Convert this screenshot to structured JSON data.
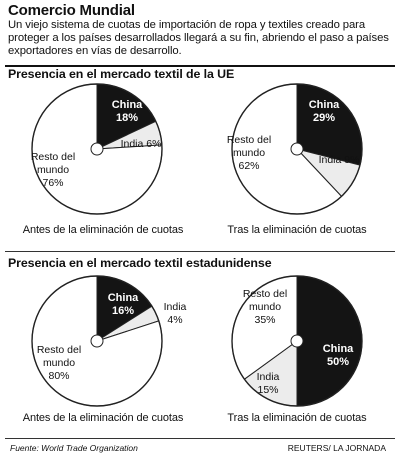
{
  "header": {
    "title": "Comercio Mundial",
    "intro": "Un viejo sistema de cuotas de importación de ropa y textiles creado para proteger a los países desarrollados llegará a su fin, abriendo el paso a países exportadores en vías de desarrollo."
  },
  "sections": [
    {
      "title": "Presencia en el mercado textil de la UE"
    },
    {
      "title": "Presencia en el mercado textil estadunidense"
    }
  ],
  "footer": {
    "source": "Fuente: World Trade Organization",
    "credit": "REUTERS/ LA JORNADA"
  },
  "colors": {
    "china": "#141414",
    "india": "#ececec",
    "rest": "#ffffff",
    "outline": "#222222"
  },
  "chart_data": [
    {
      "type": "pie",
      "title": "",
      "caption": "Antes de la eliminación de cuotas",
      "slices": [
        {
          "label": "China",
          "value": 18
        },
        {
          "label": "India",
          "value": 6
        },
        {
          "label": "Resto del mundo",
          "value": 76
        }
      ]
    },
    {
      "type": "pie",
      "title": "",
      "caption": "Tras la eliminación de cuotas",
      "slices": [
        {
          "label": "China",
          "value": 29
        },
        {
          "label": "India",
          "value": 9
        },
        {
          "label": "Resto del mundo",
          "value": 62
        }
      ]
    },
    {
      "type": "pie",
      "title": "",
      "caption": "Antes de la eliminación de cuotas",
      "slices": [
        {
          "label": "China",
          "value": 16
        },
        {
          "label": "India",
          "value": 4
        },
        {
          "label": "Resto del mundo",
          "value": 80
        }
      ]
    },
    {
      "type": "pie",
      "title": "",
      "caption": "Tras la eliminación de cuotas",
      "slices": [
        {
          "label": "China",
          "value": 50
        },
        {
          "label": "India",
          "value": 15
        },
        {
          "label": "Resto del mundo",
          "value": 35
        }
      ]
    }
  ]
}
